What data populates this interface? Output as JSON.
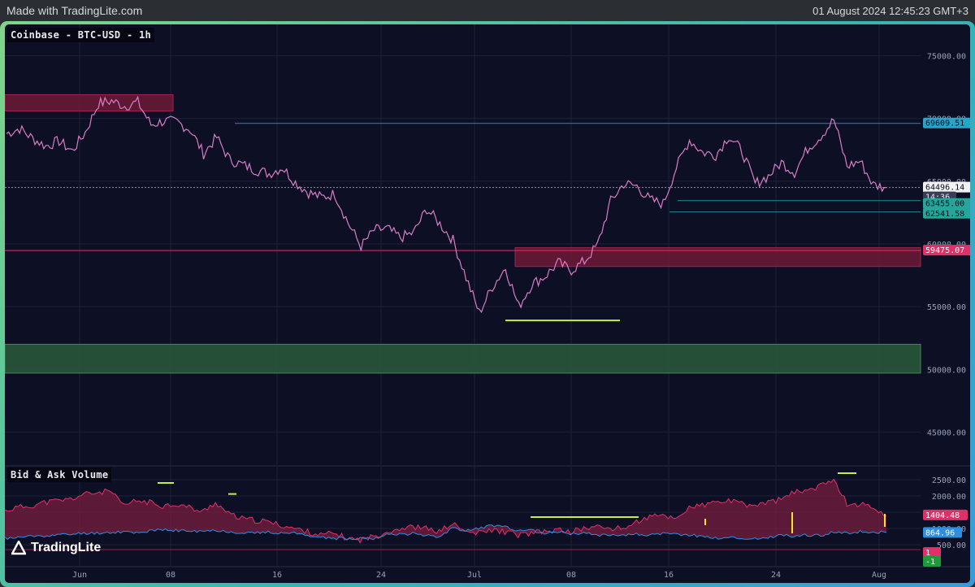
{
  "header": {
    "brand": "Made with TradingLite.com",
    "timestamp": "01 August 2024 12:45:23 GMT+3"
  },
  "logo": {
    "text": "TradingLite"
  },
  "colors": {
    "background": "#0d0f24",
    "candles": "#d97dc4",
    "red_zone": "#6e1a36",
    "green_zone": "#2a5a3a",
    "teal_line": "#1f8fa0",
    "red_line": "#d8345f",
    "lime": "#c6f03a",
    "bid_fill": "#6b1c3c",
    "ask_line": "#2d8fe0"
  },
  "chart_data": [
    {
      "type": "line",
      "title": "Coinbase - BTC-USD - 1h",
      "x_ticks": [
        "Jun",
        "08",
        "16",
        "24",
        "Jul",
        "08",
        "16",
        "24",
        "Aug"
      ],
      "y_ticks": [
        "45000.00",
        "50000.00",
        "55000.00",
        "60000.00",
        "65000.00",
        "70000.00",
        "75000.00"
      ],
      "ylim": [
        42500,
        77500
      ],
      "series": [
        {
          "values": [
            68800,
            69200,
            68400,
            67800,
            68200,
            67400,
            68900,
            71200,
            71400,
            71000,
            71300,
            69500,
            69800,
            69700,
            69100,
            67200,
            68500,
            66700,
            66300,
            65900,
            65600,
            66100,
            64900,
            64100,
            63700,
            64000,
            61700,
            59800,
            61100,
            61200,
            60500,
            60900,
            62800,
            61600,
            60300,
            57300,
            54500,
            56600,
            58100,
            55000,
            56800,
            57400,
            58500,
            57900,
            58600,
            59900,
            63400,
            64800,
            64600,
            63500,
            63200,
            66100,
            68300,
            67300,
            67100,
            68600,
            67400,
            64800,
            65400,
            66500,
            65700,
            67600,
            68600,
            69900,
            66200,
            66600,
            64700,
            64500
          ]
        }
      ],
      "price_labels": [
        {
          "value": 69609.51,
          "text": "69609.51",
          "color": "#23a7c9"
        },
        {
          "value": 64496.14,
          "text": "64496.14",
          "color": "#f2f2f2"
        },
        {
          "text": "14:36"
        },
        {
          "value": 63455.0,
          "text": "63455.00",
          "color": "#26a69a"
        },
        {
          "value": 62541.58,
          "text": "62541.58",
          "color": "#26a69a"
        },
        {
          "value": 59475.07,
          "text": "59475.07",
          "color": "#e0306a"
        }
      ],
      "zones": [
        {
          "kind": "resistance",
          "from": 70600,
          "to": 71900,
          "color": "#6e1a36"
        },
        {
          "kind": "resistance",
          "from": 58200,
          "to": 59700,
          "color": "#6e1a36"
        },
        {
          "kind": "support",
          "from": 49700,
          "to": 52000,
          "color": "#2a5a3a"
        }
      ],
      "levels": [
        {
          "value": 69609.51,
          "color": "#1f8fa0"
        },
        {
          "value": 63455.0,
          "color": "#1f8fa0"
        },
        {
          "value": 62541.58,
          "color": "#1f8fa0"
        },
        {
          "value": 59475.07,
          "color": "#d8345f"
        },
        {
          "value": 53900,
          "color": "#c6f03a"
        }
      ],
      "grid": true
    },
    {
      "type": "area",
      "title": "Bid & Ask Volume",
      "y_ticks": [
        "500.00",
        "1000.00",
        "1500.00",
        "2000.00",
        "2500.00"
      ],
      "ylim": [
        0,
        2800
      ],
      "series": [
        {
          "values": [
            1550,
            1650,
            1700,
            1800,
            1850,
            1900,
            2050,
            2100,
            2150,
            1700,
            1850,
            1800,
            1700,
            1750,
            1650,
            1500,
            1800,
            1450,
            1300,
            1250,
            1200,
            1100,
            1000,
            900,
            800,
            850,
            700,
            650,
            750,
            900,
            1000,
            1050,
            1000,
            900,
            1150,
            900,
            850,
            950,
            900,
            800,
            850,
            900,
            950,
            900,
            1000,
            1050,
            1000,
            1000,
            1200,
            1350,
            1400,
            1300,
            1650,
            1700,
            1800,
            1850,
            1750,
            1700,
            1800,
            1900,
            2100,
            2200,
            2300,
            2550,
            1750,
            1750,
            1650,
            1400
          ]
        },
        {
          "values": [
            700,
            720,
            760,
            780,
            800,
            820,
            860,
            860,
            880,
            900,
            880,
            920,
            950,
            940,
            920,
            900,
            950,
            900,
            880,
            860,
            880,
            870,
            850,
            800,
            720,
            700,
            680,
            700,
            700,
            800,
            820,
            850,
            800,
            750,
            1000,
            950,
            1000,
            1100,
            1050,
            900,
            950,
            850,
            900,
            850,
            850,
            800,
            820,
            800,
            820,
            800,
            830,
            820,
            800,
            760,
            700,
            720,
            700,
            680,
            720,
            800,
            760,
            800,
            780,
            900,
            860,
            900,
            880,
            880
          ]
        }
      ],
      "value_labels": [
        {
          "value": 1404.48,
          "text": "1404.48",
          "color": "#e0306a"
        },
        {
          "value": 864.96,
          "text": "864.96",
          "color": "#2d8fe0"
        },
        {
          "text": "1",
          "color": "#e0306a"
        },
        {
          "text": "-1",
          "color": "#1e9a3a"
        }
      ],
      "grid": true
    }
  ]
}
